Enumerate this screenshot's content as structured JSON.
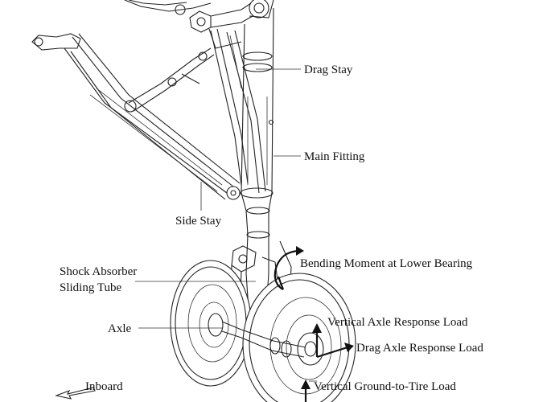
{
  "labels": {
    "drag_stay": "Drag Stay",
    "main_fitting": "Main Fitting",
    "side_stay": "Side Stay",
    "shock_absorber_1": "Shock Absorber",
    "shock_absorber_2": "Sliding Tube",
    "bending_moment": "Bending Moment at Lower Bearing",
    "axle": "Axle",
    "vertical_axle_load": "Vertical Axle Response Load",
    "drag_axle_load": "Drag Axle Response Load",
    "inboard": "Inboard",
    "vertical_ground_load": "Vertical Ground-to-Tire Load"
  }
}
